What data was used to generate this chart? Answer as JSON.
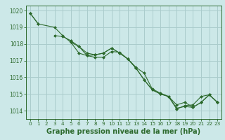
{
  "background_color": "#cce8e8",
  "grid_color": "#aacccc",
  "line_color": "#2d6a2d",
  "marker_color": "#2d6a2d",
  "xlabel": "Graphe pression niveau de la mer (hPa)",
  "xlabel_fontsize": 7.0,
  "ylim": [
    1013.5,
    1020.3
  ],
  "xlim": [
    -0.5,
    23.5
  ],
  "yticks": [
    1014,
    1015,
    1016,
    1017,
    1018,
    1019,
    1020
  ],
  "xticks": [
    0,
    1,
    2,
    3,
    4,
    5,
    6,
    7,
    8,
    9,
    10,
    11,
    12,
    13,
    14,
    15,
    16,
    17,
    18,
    19,
    20,
    21,
    22,
    23
  ],
  "lines": [
    [
      1019.85,
      1019.2,
      null,
      null,
      null,
      null,
      null,
      null,
      null,
      null,
      null,
      null,
      null,
      null,
      null,
      null,
      null,
      null,
      null,
      null,
      null,
      null,
      null,
      null
    ],
    [
      1019.85,
      1019.2,
      null,
      1019.0,
      1018.5,
      1018.1,
      1017.85,
      1017.3,
      1017.2,
      1017.2,
      1017.55,
      1017.5,
      1017.1,
      1016.6,
      1016.25,
      1015.3,
      1015.05,
      1014.85,
      1014.1,
      1014.3,
      1014.35,
      1014.85,
      1014.95,
      1014.5
    ],
    [
      null,
      null,
      null,
      1018.5,
      1018.45,
      1018.2,
      1017.85,
      1017.45,
      1017.35,
      1017.45,
      1017.75,
      1017.45,
      1017.1,
      1016.55,
      1015.85,
      1015.25,
      1015.0,
      1014.85,
      1014.35,
      1014.5,
      1014.2,
      1014.5,
      1014.95,
      1014.5
    ],
    [
      null,
      null,
      null,
      null,
      null,
      1018.1,
      1017.45,
      1017.3,
      1017.35,
      1017.45,
      1017.75,
      1017.45,
      1017.1,
      1016.55,
      1015.85,
      1015.25,
      1015.0,
      1014.85,
      1014.15,
      1014.25,
      1014.2,
      1014.5,
      1014.95,
      1014.5
    ]
  ]
}
